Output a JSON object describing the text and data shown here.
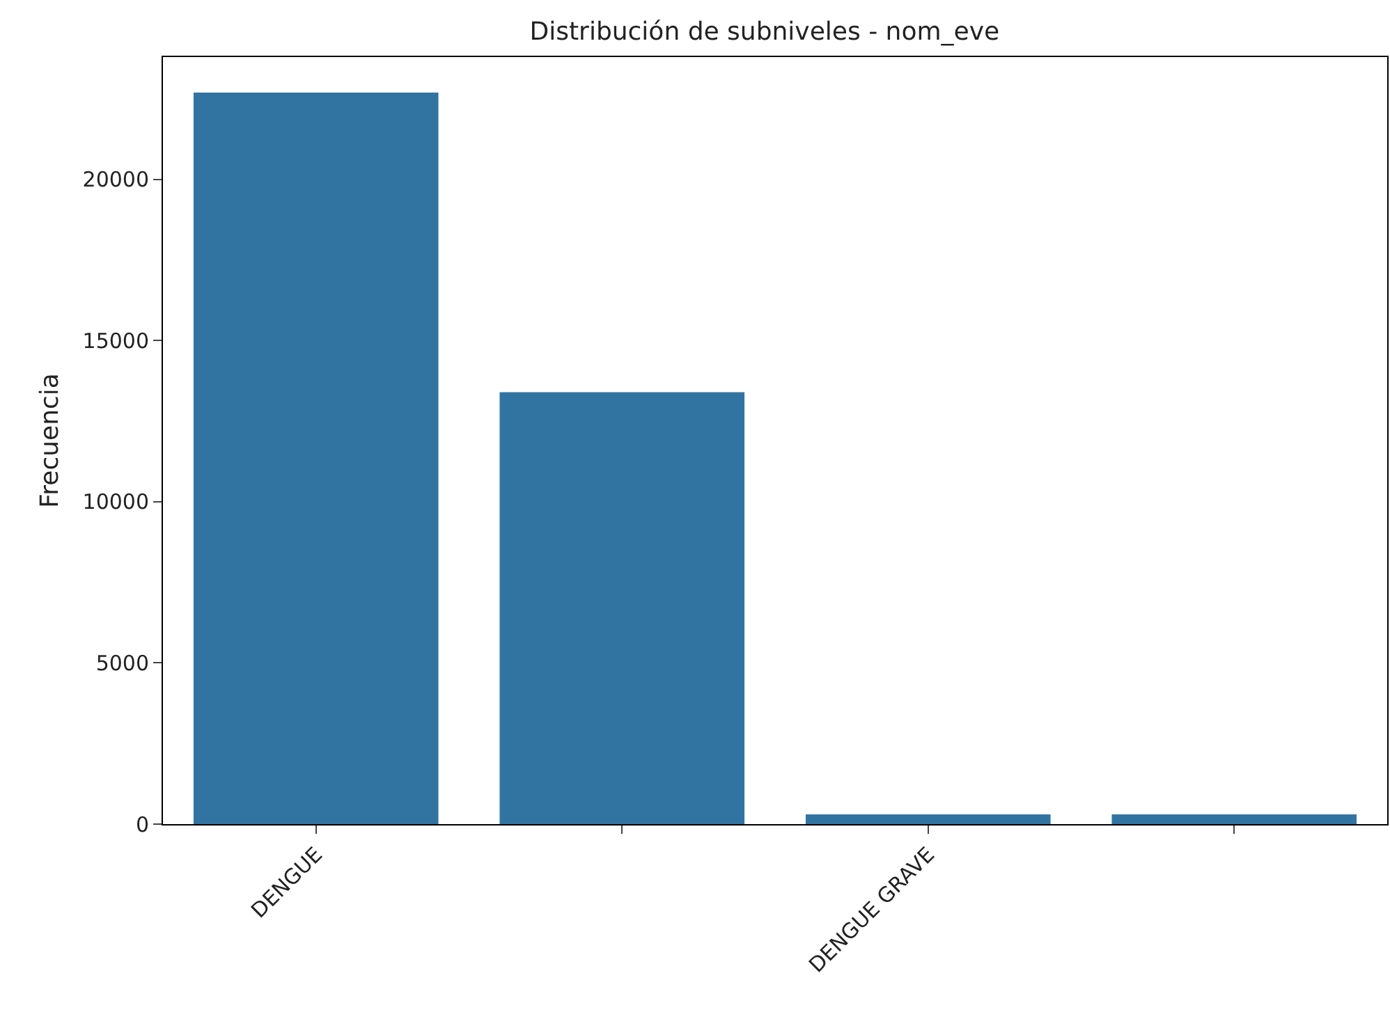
{
  "chart_data": {
    "type": "bar",
    "title": "Distribución de subniveles - nom_eve",
    "ylabel": "Frecuencia",
    "categories": [
      "DENGUE",
      null,
      "DENGUE GRAVE",
      null
    ],
    "values": [
      22700,
      13400,
      300,
      300
    ],
    "color": "#3274a1",
    "ylim": [
      0,
      23800
    ],
    "yticks": [
      0,
      5000,
      10000,
      15000,
      20000
    ]
  }
}
